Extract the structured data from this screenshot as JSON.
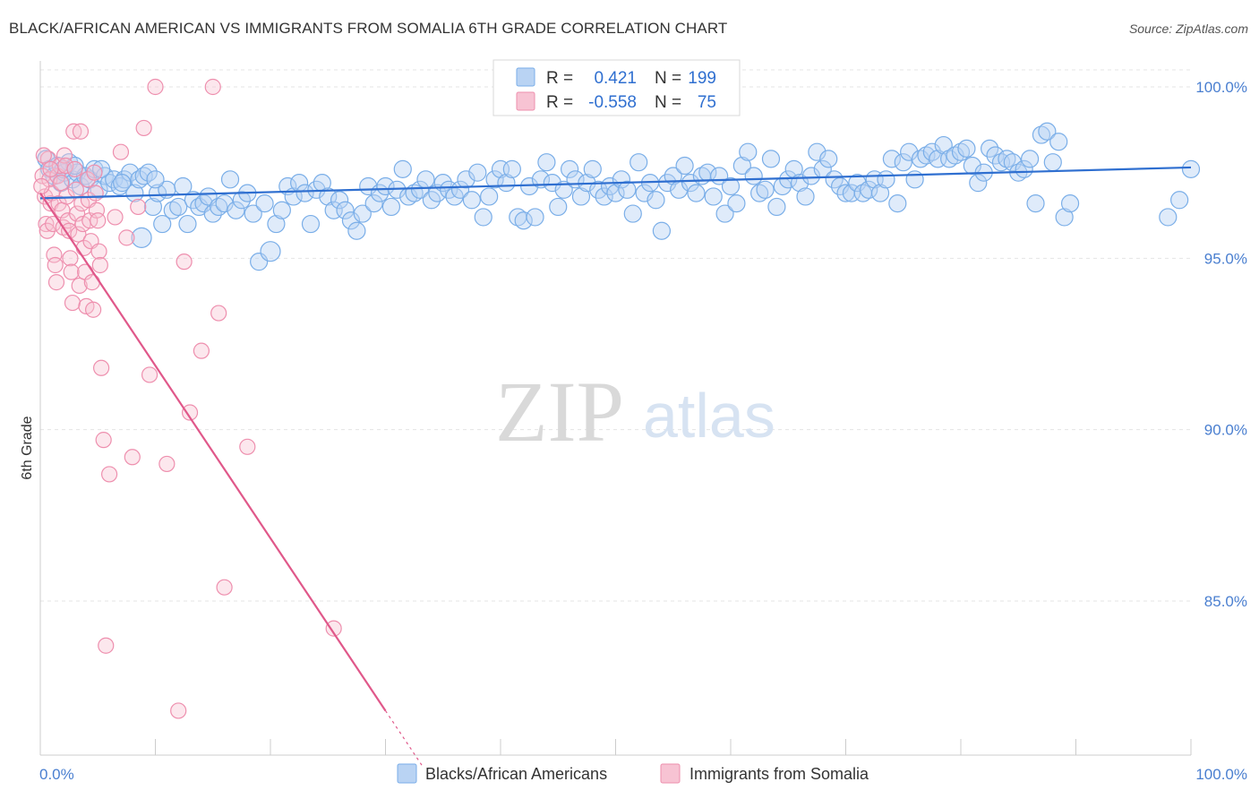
{
  "title": "BLACK/AFRICAN AMERICAN VS IMMIGRANTS FROM SOMALIA 6TH GRADE CORRELATION CHART",
  "source": "Source: ZipAtlas.com",
  "watermark": {
    "zip": "ZIP",
    "atlas": "atlas"
  },
  "colors": {
    "blue": "#7aaee8",
    "blue_fill": "#b9d3f3",
    "blue_line": "#2f6fd0",
    "pink": "#ee8fae",
    "pink_fill": "#f7c3d3",
    "pink_line": "#e0588a",
    "axis_text": "#4a7fd0",
    "grid": "#e4e4e4"
  },
  "legend_top": {
    "blue": {
      "r_label": "R =",
      "r_value": "0.421",
      "n_label": "N =",
      "n_value": "199"
    },
    "pink": {
      "r_label": "R =",
      "r_value": "-0.558",
      "n_label": "N =",
      "n_value": "75"
    }
  },
  "chart_data": {
    "type": "scatter",
    "title": "BLACK/AFRICAN AMERICAN VS IMMIGRANTS FROM SOMALIA 6TH GRADE CORRELATION CHART",
    "xlabel": "",
    "ylabel": "6th Grade",
    "xlim": [
      0,
      100
    ],
    "ylim": [
      80.5,
      100.8
    ],
    "x_tick_labels": [
      "0.0%",
      "100.0%"
    ],
    "y_ticks": [
      85,
      90,
      95,
      100
    ],
    "y_tick_labels": [
      "85.0%",
      "90.0%",
      "95.0%",
      "100.0%"
    ],
    "grid": true,
    "legend_position": "top-center",
    "series": [
      {
        "name": "Blacks/African Americans",
        "color": "#7aaee8",
        "trend": {
          "x": [
            0,
            100
          ],
          "y": [
            96.75,
            97.65
          ]
        },
        "points": [
          [
            0.5,
            97.9
          ],
          [
            0.8,
            97.6
          ],
          [
            1.2,
            97.4
          ],
          [
            1.5,
            97.7
          ],
          [
            1.8,
            97.2
          ],
          [
            2.1,
            97.5
          ],
          [
            2.5,
            97.8
          ],
          [
            2.8,
            97.3
          ],
          [
            3.2,
            97.5
          ],
          [
            3.5,
            97.1
          ],
          [
            3.9,
            97.4
          ],
          [
            4.3,
            97.3
          ],
          [
            4.7,
            97.6
          ],
          [
            5.1,
            97.0
          ],
          [
            5.6,
            97.4
          ],
          [
            6.0,
            97.2
          ],
          [
            6.4,
            97.3
          ],
          [
            6.9,
            97.1
          ],
          [
            7.3,
            97.3
          ],
          [
            7.8,
            97.5
          ],
          [
            8.2,
            96.9
          ],
          [
            8.6,
            97.3
          ],
          [
            9.0,
            97.4
          ],
          [
            9.4,
            97.5
          ],
          [
            9.8,
            96.5
          ],
          [
            10.2,
            96.9
          ],
          [
            10.6,
            96.0
          ],
          [
            11.0,
            97.0
          ],
          [
            11.5,
            96.4
          ],
          [
            12.0,
            96.5
          ],
          [
            12.4,
            97.1
          ],
          [
            12.8,
            96.0
          ],
          [
            13.3,
            96.7
          ],
          [
            13.8,
            96.5
          ],
          [
            14.2,
            96.6
          ],
          [
            14.6,
            96.8
          ],
          [
            15.0,
            96.3
          ],
          [
            15.5,
            96.5
          ],
          [
            16.0,
            96.6
          ],
          [
            16.5,
            97.3
          ],
          [
            17.0,
            96.4
          ],
          [
            17.5,
            96.7
          ],
          [
            18.0,
            96.9
          ],
          [
            18.5,
            96.3
          ],
          [
            19.0,
            94.9
          ],
          [
            19.5,
            96.6
          ],
          [
            20.0,
            95.2
          ],
          [
            20.5,
            96.0
          ],
          [
            21.0,
            96.4
          ],
          [
            21.5,
            97.1
          ],
          [
            22.0,
            96.8
          ],
          [
            22.5,
            97.2
          ],
          [
            23.0,
            96.9
          ],
          [
            23.5,
            96.0
          ],
          [
            24.0,
            97.0
          ],
          [
            24.5,
            97.2
          ],
          [
            25.0,
            96.8
          ],
          [
            25.5,
            96.4
          ],
          [
            26.0,
            96.7
          ],
          [
            26.5,
            96.4
          ],
          [
            27.0,
            96.1
          ],
          [
            27.5,
            95.8
          ],
          [
            28.0,
            96.3
          ],
          [
            28.5,
            97.1
          ],
          [
            29.0,
            96.6
          ],
          [
            29.5,
            96.9
          ],
          [
            30.0,
            97.1
          ],
          [
            30.5,
            96.5
          ],
          [
            31.0,
            97.0
          ],
          [
            31.5,
            97.6
          ],
          [
            32.0,
            96.8
          ],
          [
            32.5,
            96.9
          ],
          [
            33.0,
            97.0
          ],
          [
            33.5,
            97.3
          ],
          [
            34.0,
            96.7
          ],
          [
            34.5,
            96.9
          ],
          [
            35.0,
            97.2
          ],
          [
            35.5,
            97.0
          ],
          [
            36.0,
            96.8
          ],
          [
            36.5,
            97.0
          ],
          [
            37.0,
            97.3
          ],
          [
            37.5,
            96.7
          ],
          [
            38.0,
            97.5
          ],
          [
            38.5,
            96.2
          ],
          [
            39.0,
            96.8
          ],
          [
            39.5,
            97.3
          ],
          [
            40.0,
            97.6
          ],
          [
            40.5,
            97.2
          ],
          [
            41.0,
            97.6
          ],
          [
            41.5,
            96.2
          ],
          [
            42.0,
            96.1
          ],
          [
            42.5,
            97.1
          ],
          [
            43.0,
            96.2
          ],
          [
            43.5,
            97.3
          ],
          [
            44.0,
            97.8
          ],
          [
            44.5,
            97.2
          ],
          [
            45.0,
            96.5
          ],
          [
            45.5,
            97.0
          ],
          [
            46.0,
            97.6
          ],
          [
            46.5,
            97.3
          ],
          [
            47.0,
            96.8
          ],
          [
            47.5,
            97.2
          ],
          [
            48.0,
            97.6
          ],
          [
            48.5,
            97.0
          ],
          [
            49.0,
            96.8
          ],
          [
            49.5,
            97.1
          ],
          [
            50.0,
            96.9
          ],
          [
            50.5,
            97.3
          ],
          [
            51.0,
            97.0
          ],
          [
            51.5,
            96.3
          ],
          [
            52.0,
            97.8
          ],
          [
            52.5,
            96.9
          ],
          [
            53.0,
            97.2
          ],
          [
            53.5,
            96.7
          ],
          [
            54.0,
            95.8
          ],
          [
            54.5,
            97.2
          ],
          [
            55.0,
            97.4
          ],
          [
            55.5,
            97.0
          ],
          [
            56.0,
            97.7
          ],
          [
            56.5,
            97.2
          ],
          [
            57.0,
            96.9
          ],
          [
            57.5,
            97.4
          ],
          [
            58.0,
            97.5
          ],
          [
            58.5,
            96.8
          ],
          [
            59.0,
            97.4
          ],
          [
            59.5,
            96.3
          ],
          [
            60.0,
            97.1
          ],
          [
            60.5,
            96.6
          ],
          [
            61.0,
            97.7
          ],
          [
            61.5,
            98.1
          ],
          [
            62.0,
            97.4
          ],
          [
            62.5,
            96.9
          ],
          [
            63.0,
            97.0
          ],
          [
            63.5,
            97.9
          ],
          [
            64.0,
            96.5
          ],
          [
            64.5,
            97.1
          ],
          [
            65.0,
            97.3
          ],
          [
            65.5,
            97.6
          ],
          [
            66.0,
            97.2
          ],
          [
            66.5,
            96.8
          ],
          [
            67.0,
            97.4
          ],
          [
            67.5,
            98.1
          ],
          [
            68.0,
            97.6
          ],
          [
            68.5,
            97.9
          ],
          [
            69.0,
            97.3
          ],
          [
            69.5,
            97.1
          ],
          [
            70.0,
            96.9
          ],
          [
            70.5,
            96.9
          ],
          [
            71.0,
            97.2
          ],
          [
            71.5,
            96.9
          ],
          [
            72.0,
            97.0
          ],
          [
            72.5,
            97.3
          ],
          [
            73.0,
            96.9
          ],
          [
            73.5,
            97.3
          ],
          [
            74.0,
            97.9
          ],
          [
            74.5,
            96.6
          ],
          [
            75.0,
            97.8
          ],
          [
            75.5,
            98.1
          ],
          [
            76.0,
            97.3
          ],
          [
            76.5,
            97.9
          ],
          [
            77.0,
            98.0
          ],
          [
            77.5,
            98.1
          ],
          [
            78.0,
            97.9
          ],
          [
            78.5,
            98.3
          ],
          [
            79.0,
            97.9
          ],
          [
            79.5,
            98.0
          ],
          [
            80.0,
            98.1
          ],
          [
            80.5,
            98.2
          ],
          [
            81.0,
            97.7
          ],
          [
            81.5,
            97.2
          ],
          [
            82.0,
            97.5
          ],
          [
            82.5,
            98.2
          ],
          [
            83.0,
            98.0
          ],
          [
            83.5,
            97.8
          ],
          [
            84.0,
            97.9
          ],
          [
            84.5,
            97.8
          ],
          [
            85.0,
            97.5
          ],
          [
            85.5,
            97.6
          ],
          [
            86.0,
            97.9
          ],
          [
            86.5,
            96.6
          ],
          [
            87.0,
            98.6
          ],
          [
            87.5,
            98.7
          ],
          [
            88.0,
            97.8
          ],
          [
            88.5,
            98.4
          ],
          [
            89.0,
            96.2
          ],
          [
            89.5,
            96.6
          ],
          [
            10.0,
            97.3
          ],
          [
            8.8,
            95.6
          ],
          [
            7.1,
            97.2
          ],
          [
            5.3,
            97.6
          ],
          [
            3.0,
            97.7
          ],
          [
            2.0,
            97.6
          ],
          [
            100.0,
            97.6
          ],
          [
            99.0,
            96.7
          ],
          [
            98.0,
            96.2
          ]
        ]
      },
      {
        "name": "Immigrants from Somalia",
        "color": "#ee8fae",
        "trend": {
          "x": [
            0,
            30
          ],
          "y": [
            96.9,
            81.8
          ]
        },
        "points": [
          [
            0.2,
            97.4
          ],
          [
            0.4,
            96.8
          ],
          [
            0.5,
            96.0
          ],
          [
            0.6,
            95.8
          ],
          [
            0.7,
            97.9
          ],
          [
            0.8,
            97.3
          ],
          [
            0.9,
            96.6
          ],
          [
            1.0,
            96.9
          ],
          [
            1.1,
            96.0
          ],
          [
            1.2,
            95.1
          ],
          [
            1.3,
            94.8
          ],
          [
            1.4,
            94.3
          ],
          [
            1.5,
            97.4
          ],
          [
            1.6,
            96.6
          ],
          [
            1.7,
            97.7
          ],
          [
            1.8,
            97.2
          ],
          [
            1.9,
            96.4
          ],
          [
            2.0,
            95.9
          ],
          [
            2.1,
            98.0
          ],
          [
            2.2,
            97.7
          ],
          [
            2.3,
            96.8
          ],
          [
            2.4,
            96.1
          ],
          [
            2.5,
            95.8
          ],
          [
            2.6,
            95.0
          ],
          [
            2.7,
            94.6
          ],
          [
            2.8,
            93.7
          ],
          [
            2.9,
            98.7
          ],
          [
            3.0,
            97.6
          ],
          [
            3.1,
            97.0
          ],
          [
            3.2,
            96.3
          ],
          [
            3.3,
            95.7
          ],
          [
            3.4,
            94.2
          ],
          [
            3.5,
            98.7
          ],
          [
            3.6,
            96.6
          ],
          [
            3.7,
            96.0
          ],
          [
            3.8,
            95.3
          ],
          [
            3.9,
            94.6
          ],
          [
            4.0,
            93.6
          ],
          [
            4.1,
            97.3
          ],
          [
            4.2,
            96.7
          ],
          [
            4.3,
            96.1
          ],
          [
            4.4,
            95.5
          ],
          [
            4.5,
            94.3
          ],
          [
            4.6,
            93.5
          ],
          [
            4.7,
            97.5
          ],
          [
            4.8,
            96.9
          ],
          [
            4.9,
            96.4
          ],
          [
            5.0,
            96.1
          ],
          [
            5.1,
            95.2
          ],
          [
            5.2,
            94.8
          ],
          [
            5.3,
            91.8
          ],
          [
            5.5,
            89.7
          ],
          [
            5.7,
            83.7
          ],
          [
            6.0,
            88.7
          ],
          [
            6.5,
            96.2
          ],
          [
            7.0,
            98.1
          ],
          [
            7.5,
            95.6
          ],
          [
            8.0,
            89.2
          ],
          [
            8.5,
            96.5
          ],
          [
            9.0,
            98.8
          ],
          [
            9.5,
            91.6
          ],
          [
            10.0,
            100.0
          ],
          [
            11.0,
            89.0
          ],
          [
            12.0,
            81.8
          ],
          [
            12.5,
            94.9
          ],
          [
            13.0,
            90.5
          ],
          [
            14.0,
            92.3
          ],
          [
            15.0,
            100.0
          ],
          [
            15.5,
            93.4
          ],
          [
            16.0,
            85.4
          ],
          [
            18.0,
            89.5
          ],
          [
            25.5,
            84.2
          ],
          [
            0.3,
            98.0
          ],
          [
            0.1,
            97.1
          ],
          [
            0.9,
            97.6
          ]
        ]
      }
    ]
  },
  "bottom_legend": [
    {
      "label": "Blacks/African Americans"
    },
    {
      "label": "Immigrants from Somalia"
    }
  ]
}
